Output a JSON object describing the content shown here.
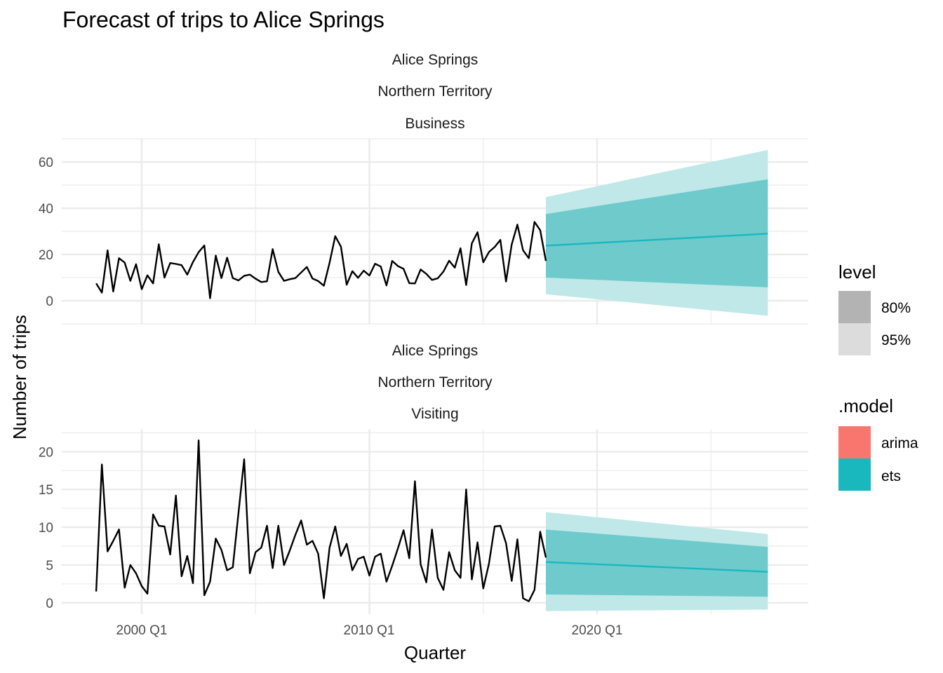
{
  "chart_data": {
    "type": "line",
    "title": "Forecast of trips to Alice Springs",
    "xlabel": "Quarter",
    "ylabel": "Number of trips",
    "x_tick_labels": [
      "2000 Q1",
      "2010 Q1",
      "2020 Q1"
    ],
    "grid": true,
    "legend_position": "right",
    "legends": {
      "level": {
        "title": "level",
        "entries": [
          {
            "label": "80%",
            "color": "#b3b3b3"
          },
          {
            "label": "95%",
            "color": "#dcdcdc"
          }
        ]
      },
      "model": {
        "title": ".model",
        "entries": [
          {
            "label": "arima",
            "color": "#F8766D"
          },
          {
            "label": "ets",
            "color": "#19B8BF"
          }
        ]
      }
    },
    "colors": {
      "observed": "#000000",
      "forecast": "#19B8BF",
      "interval_80": "#6fcacc",
      "interval_95": "#c0e8e8"
    },
    "panels": [
      {
        "strip": [
          "Alice Springs",
          "Northern Territory",
          "Business"
        ],
        "ylim": [
          -10,
          70
        ],
        "y_ticks": [
          0,
          20,
          40,
          60
        ],
        "observed_start": 1998.0,
        "observed": [
          7.5,
          3.5,
          21.8,
          4.0,
          18.4,
          16.5,
          8.6,
          15.8,
          5.0,
          11.0,
          7.5,
          24.4,
          10.0,
          16.3,
          15.9,
          15.4,
          11.3,
          16.7,
          21.0,
          23.9,
          1.1,
          19.5,
          9.8,
          18.6,
          9.8,
          8.8,
          10.8,
          11.3,
          9.5,
          8.1,
          8.4,
          22.3,
          12.5,
          8.6,
          9.3,
          9.8,
          12.2,
          14.6,
          9.6,
          8.5,
          6.5,
          16.4,
          27.9,
          23.4,
          6.9,
          12.8,
          9.9,
          13.0,
          10.9,
          16.0,
          14.8,
          6.6,
          17.2,
          15.0,
          13.8,
          7.6,
          7.5,
          13.5,
          11.6,
          9.0,
          9.7,
          12.6,
          17.3,
          14.3,
          22.7,
          6.8,
          24.8,
          29.6,
          16.6,
          21.1,
          23.2,
          26.3,
          8.3,
          24.3,
          32.9,
          21.8,
          18.4,
          34.1,
          30.5,
          17.2
        ],
        "forecast": {
          "start": 2017.75,
          "end": 2027.5,
          "mean": [
            23.8,
            29.0
          ],
          "lo80": [
            10.0,
            5.8
          ],
          "hi80": [
            37.5,
            52.5
          ],
          "lo95": [
            2.8,
            -6.5
          ],
          "hi95": [
            44.8,
            65.2
          ]
        }
      },
      {
        "strip": [
          "Alice Springs",
          "Northern Territory",
          "Visiting"
        ],
        "ylim": [
          -1.5,
          23
        ],
        "y_ticks": [
          0,
          5,
          10,
          15,
          20
        ],
        "observed_start": 1998.0,
        "observed": [
          1.5,
          18.3,
          6.8,
          8.2,
          9.7,
          2.0,
          5.0,
          3.9,
          2.2,
          1.2,
          11.7,
          10.2,
          10.1,
          6.4,
          14.2,
          3.5,
          6.2,
          2.6,
          21.5,
          1.0,
          2.8,
          8.5,
          7.0,
          4.3,
          4.7,
          11.9,
          19.0,
          3.9,
          6.7,
          7.3,
          10.2,
          4.6,
          10.2,
          5.0,
          6.9,
          9.0,
          10.9,
          7.7,
          8.2,
          6.5,
          0.6,
          7.3,
          10.1,
          6.2,
          7.8,
          4.3,
          5.8,
          6.1,
          3.6,
          6.1,
          6.5,
          2.8,
          4.9,
          7.2,
          9.6,
          5.9,
          16.1,
          5.1,
          2.7,
          9.7,
          3.3,
          1.7,
          6.7,
          4.3,
          3.3,
          15.0,
          3.1,
          8.0,
          1.9,
          5.2,
          10.1,
          10.2,
          7.9,
          2.9,
          8.4,
          0.6,
          0.2,
          1.7,
          9.4,
          6.0
        ],
        "forecast": {
          "start": 2017.75,
          "end": 2027.5,
          "mean": [
            5.4,
            4.1
          ],
          "lo80": [
            1.1,
            0.8
          ],
          "hi80": [
            9.7,
            7.4
          ],
          "lo95": [
            -1.1,
            -0.9
          ],
          "hi95": [
            12.0,
            9.1
          ]
        }
      }
    ]
  }
}
